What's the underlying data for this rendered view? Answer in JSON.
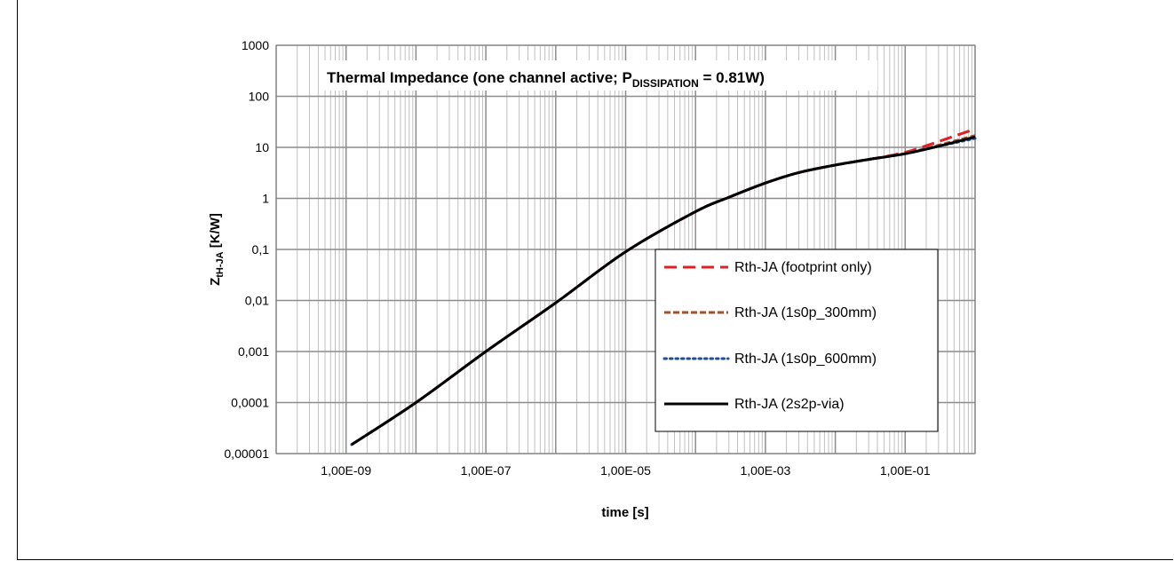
{
  "chart_data": {
    "type": "line",
    "title": {
      "main": "Thermal Impedance (one channel active; P",
      "sub": "DISSIPATION",
      "tail": " = 0.81W)"
    },
    "xlabel": "time  [s]",
    "ylabel": {
      "main": "Z",
      "sub": "tH-JA",
      "tail": " [K/W]"
    },
    "x_scale": "log",
    "y_scale": "log",
    "xlim": [
      1e-10,
      1
    ],
    "ylim": [
      1e-05,
      1000
    ],
    "x_tick_labels": [
      "1,00E-09",
      "1,00E-07",
      "1,00E-05",
      "1,00E-03",
      "1,00E-01"
    ],
    "y_tick_labels": [
      "0,00001",
      "0,0001",
      "0,001",
      "0,01",
      "0,1",
      "1",
      "10",
      "100",
      "1000"
    ],
    "grid": true,
    "legend_position": "lower-right",
    "series": [
      {
        "name": "Rth-JA (footprint only)",
        "color": "#e02020",
        "dash": "dashed",
        "x": [
          1.2e-09,
          1e-08,
          1e-07,
          1e-06,
          1e-05,
          0.0001,
          0.0003,
          0.001,
          0.003,
          0.01,
          0.03,
          0.1,
          0.3,
          1
        ],
        "y": [
          1.5e-05,
          0.0001,
          0.001,
          0.009,
          0.09,
          0.55,
          1.05,
          2.0,
          3.2,
          4.5,
          5.8,
          8.0,
          13.0,
          23.0
        ]
      },
      {
        "name": "Rth-JA (1s0p_300mm)",
        "color": "#a0522d",
        "dash": "short-dashed",
        "x": [
          1.2e-09,
          1e-08,
          1e-07,
          1e-06,
          1e-05,
          0.0001,
          0.0003,
          0.001,
          0.003,
          0.01,
          0.03,
          0.1,
          0.3,
          1
        ],
        "y": [
          1.5e-05,
          0.0001,
          0.001,
          0.009,
          0.09,
          0.55,
          1.05,
          2.0,
          3.2,
          4.5,
          5.8,
          7.6,
          11.0,
          17.0
        ]
      },
      {
        "name": "Rth-JA (1s0p_600mm)",
        "color": "#1f4e9b",
        "dash": "dotted",
        "x": [
          1.2e-09,
          1e-08,
          1e-07,
          1e-06,
          1e-05,
          0.0001,
          0.0003,
          0.001,
          0.003,
          0.01,
          0.03,
          0.1,
          0.3,
          1
        ],
        "y": [
          1.5e-05,
          0.0001,
          0.001,
          0.009,
          0.09,
          0.55,
          1.05,
          2.0,
          3.2,
          4.5,
          5.8,
          7.5,
          10.5,
          15.0
        ]
      },
      {
        "name": "Rth-JA (2s2p-via)",
        "color": "#000000",
        "dash": "solid",
        "x": [
          1.2e-09,
          1e-08,
          1e-07,
          1e-06,
          1e-05,
          0.0001,
          0.0003,
          0.001,
          0.003,
          0.01,
          0.03,
          0.1,
          0.3,
          1
        ],
        "y": [
          1.5e-05,
          0.0001,
          0.001,
          0.009,
          0.09,
          0.55,
          1.05,
          2.0,
          3.2,
          4.5,
          5.8,
          7.5,
          10.5,
          16.0
        ]
      }
    ]
  }
}
